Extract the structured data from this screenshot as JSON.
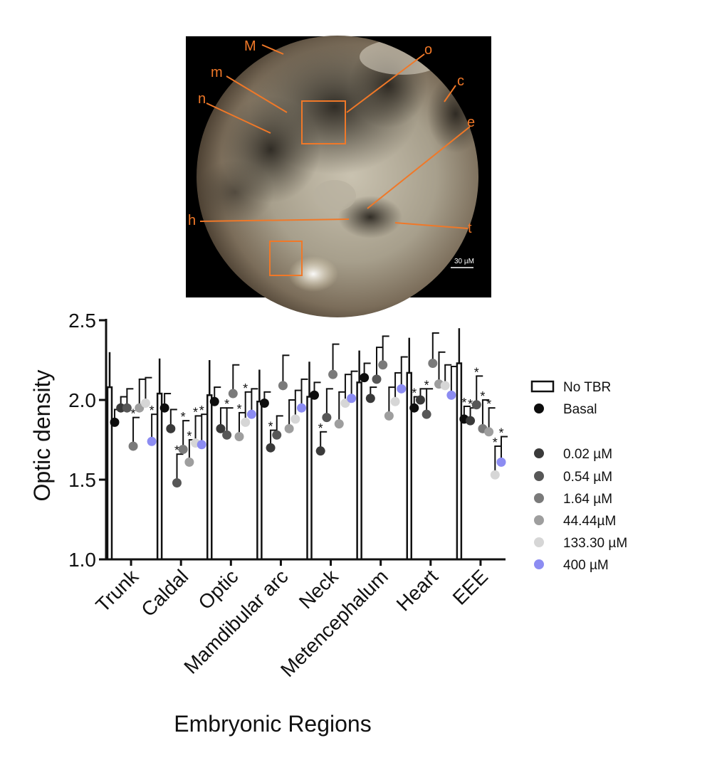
{
  "micrograph": {
    "labels": [
      "M",
      "o",
      "m",
      "c",
      "n",
      "e",
      "h",
      "t"
    ],
    "scale_bar": "30 µM",
    "label_color": "#f07828"
  },
  "chart_data": {
    "type": "bar",
    "ylabel": "Optic density",
    "xlabel": "Embryonic Regions",
    "ylim": [
      1.0,
      2.5
    ],
    "yticks": [
      "1.0",
      "1.5",
      "2.0",
      "2.5"
    ],
    "grid": false,
    "legend_position": "right",
    "categories": [
      "Trunk",
      "Caldal",
      "Optic",
      "Mamdibular arc",
      "Neck",
      "Metencephalum",
      "Heart",
      "EEE"
    ],
    "series": [
      {
        "name": "No TBR",
        "marker": "bar",
        "color": "#ffffff",
        "values": [
          2.08,
          2.04,
          2.03,
          1.99,
          2.02,
          2.11,
          2.17,
          2.23
        ],
        "error": [
          0.22,
          0.22,
          0.22,
          0.2,
          0.22,
          0.2,
          0.22,
          0.22
        ],
        "significant": [
          false,
          false,
          false,
          false,
          false,
          false,
          false,
          false
        ]
      },
      {
        "name": "Basal",
        "marker": "dot",
        "color": "#0d0d0d",
        "values": [
          1.86,
          1.95,
          1.99,
          1.98,
          2.03,
          2.14,
          1.95,
          1.88
        ],
        "error": [
          0.08,
          0.09,
          0.09,
          0.07,
          0.08,
          0.09,
          0.07,
          0.08
        ],
        "significant": [
          false,
          false,
          false,
          false,
          false,
          false,
          true,
          true
        ]
      },
      {
        "name": "0.02 µM",
        "marker": "dot",
        "color": "#3a3a3a",
        "values": [
          1.95,
          1.82,
          1.82,
          1.7,
          1.68,
          2.01,
          2.0,
          1.87
        ],
        "error": [
          0.07,
          0.12,
          0.13,
          0.11,
          0.12,
          0.07,
          0.07,
          0.08
        ],
        "significant": [
          false,
          false,
          false,
          true,
          true,
          false,
          false,
          true
        ]
      },
      {
        "name": "0.54 µM",
        "marker": "dot",
        "color": "#575757",
        "values": [
          1.95,
          1.48,
          1.78,
          1.78,
          1.89,
          2.13,
          1.91,
          1.97
        ],
        "error": [
          0.12,
          0.18,
          0.17,
          0.12,
          0.18,
          0.2,
          0.16,
          0.18
        ],
        "significant": [
          false,
          true,
          true,
          false,
          false,
          false,
          true,
          true
        ]
      },
      {
        "name": "1.64 µM",
        "marker": "dot",
        "color": "#7a7a7a",
        "values": [
          1.71,
          1.69,
          2.04,
          2.09,
          2.16,
          2.22,
          2.23,
          1.82
        ],
        "error": [
          0.18,
          0.18,
          0.18,
          0.19,
          0.19,
          0.18,
          0.19,
          0.18
        ],
        "significant": [
          true,
          true,
          false,
          false,
          false,
          false,
          false,
          true
        ]
      },
      {
        "name": "44.44µM",
        "marker": "dot",
        "color": "#9e9e9e",
        "values": [
          1.95,
          1.61,
          1.77,
          1.82,
          1.85,
          1.9,
          2.1,
          1.8
        ],
        "error": [
          0.18,
          0.14,
          0.15,
          0.18,
          0.2,
          0.18,
          0.2,
          0.15
        ],
        "significant": [
          false,
          true,
          true,
          false,
          false,
          false,
          false,
          true
        ]
      },
      {
        "name": "133.30 µM",
        "marker": "dot",
        "color": "#d6d6d6",
        "values": [
          1.98,
          1.73,
          1.86,
          1.88,
          1.98,
          1.99,
          2.09,
          1.53
        ],
        "error": [
          0.16,
          0.17,
          0.19,
          0.18,
          0.18,
          0.18,
          0.13,
          0.18
        ],
        "significant": [
          false,
          true,
          true,
          false,
          false,
          false,
          false,
          true
        ]
      },
      {
        "name": "400 µM",
        "marker": "dot",
        "color": "#8c8cf2",
        "values": [
          1.74,
          1.72,
          1.91,
          1.95,
          2.01,
          2.07,
          2.03,
          1.61
        ],
        "error": [
          0.17,
          0.19,
          0.16,
          0.18,
          0.17,
          0.2,
          0.18,
          0.16
        ],
        "significant": [
          true,
          true,
          false,
          false,
          false,
          false,
          false,
          true
        ]
      }
    ]
  }
}
